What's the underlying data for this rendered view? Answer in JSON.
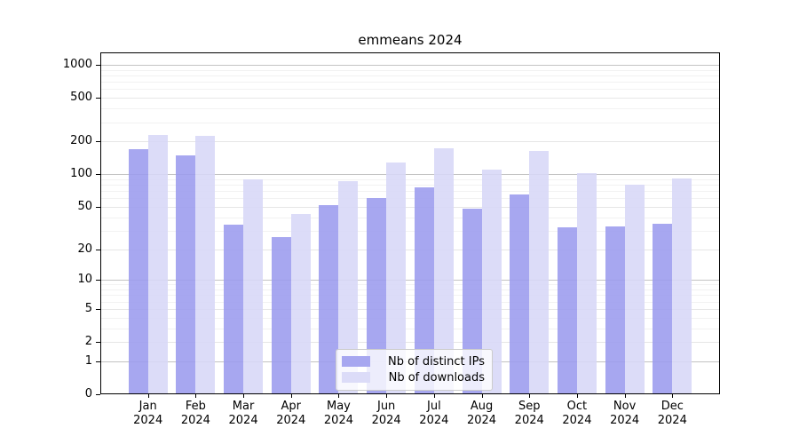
{
  "title": "emmeans 2024",
  "chart_data": {
    "type": "bar",
    "title": "emmeans 2024",
    "categories": [
      "Jan",
      "Feb",
      "Mar",
      "Apr",
      "May",
      "Jun",
      "Jul",
      "Aug",
      "Sep",
      "Oct",
      "Nov",
      "Dec"
    ],
    "category_year": "2024",
    "series": [
      {
        "name": "Nb of distinct IPs",
        "color": "#a7a7f0",
        "values": [
          170,
          150,
          34,
          26,
          52,
          60,
          75,
          48,
          65,
          32,
          33,
          35
        ]
      },
      {
        "name": "Nb of downloads",
        "color": "#dcdcf8",
        "values": [
          230,
          225,
          89,
          43,
          86,
          127,
          172,
          110,
          162,
          103,
          80,
          91
        ]
      }
    ],
    "y_scale": "log1p",
    "y_ticks": [
      0,
      1,
      2,
      5,
      10,
      20,
      50,
      100,
      200,
      500,
      1000
    ],
    "ylim": [
      0,
      1360
    ],
    "grid": "on",
    "legend_position": "lower center"
  },
  "colors": {
    "grid_major": "#c3c3c3",
    "grid_mid": "#e6e6e6",
    "grid_minor": "#f2f2f2",
    "spine": "#000000",
    "background": "#ffffff"
  }
}
